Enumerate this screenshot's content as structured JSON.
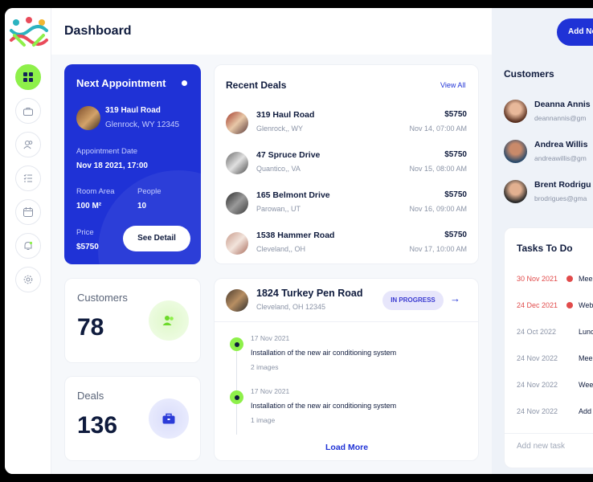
{
  "header": {
    "title": "Dashboard",
    "add_button": "Add Ne"
  },
  "sidebar": {
    "items": [
      {
        "name": "dashboard",
        "icon": "grid-icon"
      },
      {
        "name": "deals",
        "icon": "briefcase-icon"
      },
      {
        "name": "customers",
        "icon": "users-icon"
      },
      {
        "name": "tasks",
        "icon": "checklist-icon"
      },
      {
        "name": "calendar",
        "icon": "calendar-icon"
      },
      {
        "name": "notifications",
        "icon": "bell-icon"
      },
      {
        "name": "settings",
        "icon": "gear-icon"
      }
    ]
  },
  "appointment": {
    "title": "Next Appointment",
    "address": "319 Haul  Road",
    "city": "Glenrock,  WY  12345",
    "date_label": "Appointment Date",
    "date_value": "Nov 18 2021, 17:00",
    "room_label": "Room Area",
    "room_value": "100  M²",
    "people_label": "People",
    "people_value": "10",
    "price_label": "Price",
    "price_value": "$5750",
    "button": "See Detail"
  },
  "stats": {
    "customers": {
      "label": "Customers",
      "value": "78"
    },
    "deals": {
      "label": "Deals",
      "value": "136"
    }
  },
  "recent_deals": {
    "title": "Recent Deals",
    "view_all": "View All",
    "items": [
      {
        "name": "319 Haul Road",
        "city": "Glenrock,, WY",
        "price": "$5750",
        "date": "Nov 14, 07:00 AM"
      },
      {
        "name": "47 Spruce Drive",
        "city": "Quantico,, VA",
        "price": "$5750",
        "date": "Nov 15, 08:00 AM"
      },
      {
        "name": "165 Belmont Drive",
        "city": "Parowan,, UT",
        "price": "$5750",
        "date": "Nov 16, 09:00 AM"
      },
      {
        "name": "1538 Hammer Road",
        "city": "Cleveland,, OH",
        "price": "$5750",
        "date": "Nov 17, 10:00 AM"
      }
    ]
  },
  "progress_deal": {
    "name": "1824 Turkey Pen Road",
    "city": "Cleveland,  OH  12345",
    "status": "IN PROGRESS",
    "timeline": [
      {
        "date": "17 Nov 2021",
        "text": "Installation of the new air conditioning system",
        "sub": "2 images"
      },
      {
        "date": "17 Nov 2021",
        "text": "Installation of the new air conditioning system",
        "sub": "1 image"
      }
    ],
    "load_more": "Load More"
  },
  "customers_panel": {
    "title": "Customers",
    "items": [
      {
        "name": "Deanna Annis",
        "email": "deannannis@gm"
      },
      {
        "name": "Andrea Willis",
        "email": "andreawillis@gm"
      },
      {
        "name": "Brent Rodrigu",
        "email": "brodrigues@gma"
      }
    ]
  },
  "tasks": {
    "title": "Tasks To Do",
    "items": [
      {
        "date": "30 Nov 2021",
        "text": "Mee",
        "overdue": true
      },
      {
        "date": "24 Dec 2021",
        "text": "Web",
        "overdue": true
      },
      {
        "date": "24 Oct 2022",
        "text": "Lunc",
        "overdue": false
      },
      {
        "date": "24 Nov 2022",
        "text": "Mee",
        "overdue": false
      },
      {
        "date": "24 Nov 2022",
        "text": "Wee",
        "overdue": false
      },
      {
        "date": "24 Nov 2022",
        "text": "Add",
        "overdue": false
      }
    ],
    "placeholder": "Add new task"
  },
  "colors": {
    "primary": "#1f32d6",
    "accent": "#8ef04a",
    "danger": "#e14b4b"
  }
}
